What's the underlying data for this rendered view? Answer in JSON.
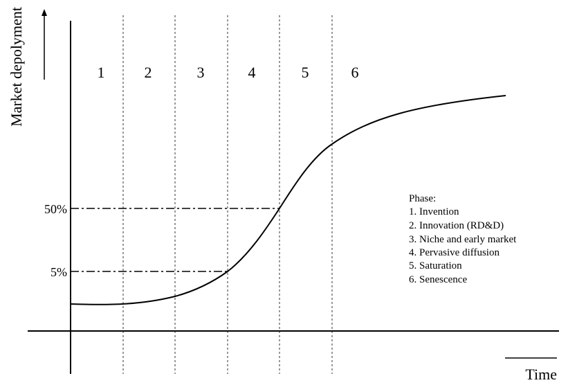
{
  "y_axis_label": "Market depolyment",
  "x_axis_label": "Time",
  "percent_labels": [
    "50%",
    "5%"
  ],
  "phase_numbers": [
    "1",
    "2",
    "3",
    "4",
    "5",
    "6"
  ],
  "legend": {
    "title": "Phase:",
    "items": [
      "1. Invention",
      "2. Innovation (RD&D)",
      "3. Niche and early market",
      "4. Pervasive diffusion",
      "5. Saturation",
      "6. Senescence"
    ]
  }
}
